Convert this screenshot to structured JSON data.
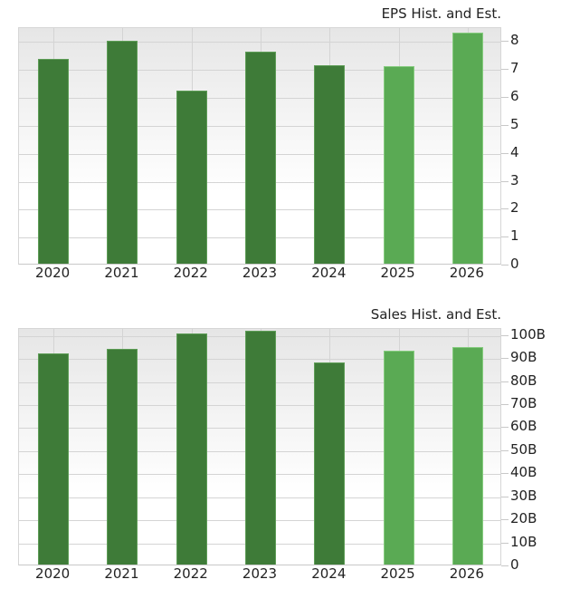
{
  "chart_data": [
    {
      "type": "bar",
      "title": "EPS Hist. and Est.",
      "categories": [
        "2020",
        "2021",
        "2022",
        "2023",
        "2024",
        "2025",
        "2026"
      ],
      "values": [
        7.34,
        7.99,
        6.2,
        7.6,
        7.1,
        7.08,
        8.28
      ],
      "series_kind": [
        "historical",
        "historical",
        "historical",
        "historical",
        "historical",
        "estimate",
        "estimate"
      ],
      "xlabel": "",
      "ylabel": "",
      "ylim": [
        0,
        8.5
      ],
      "yticks": [
        "0",
        "1",
        "2",
        "3",
        "4",
        "5",
        "6",
        "7",
        "8"
      ],
      "ytick_values": [
        0,
        1,
        2,
        3,
        4,
        5,
        6,
        7,
        8
      ],
      "grid": true,
      "yaxis_position": "right",
      "colors": {
        "historical": "#3e7b38",
        "estimate": "#5aaa54"
      }
    },
    {
      "type": "bar",
      "title": "Sales Hist. and Est.",
      "categories": [
        "2020",
        "2021",
        "2022",
        "2023",
        "2024",
        "2025",
        "2026"
      ],
      "values": [
        91.7,
        93.7,
        100.4,
        101.6,
        87.8,
        92.9,
        94.5
      ],
      "units": "B",
      "series_kind": [
        "historical",
        "historical",
        "historical",
        "historical",
        "historical",
        "estimate",
        "estimate"
      ],
      "xlabel": "",
      "ylabel": "",
      "ylim": [
        0,
        103
      ],
      "yticks": [
        "0",
        "10B",
        "20B",
        "30B",
        "40B",
        "50B",
        "60B",
        "70B",
        "80B",
        "90B",
        "100B"
      ],
      "ytick_values": [
        0,
        10,
        20,
        30,
        40,
        50,
        60,
        70,
        80,
        90,
        100
      ],
      "grid": true,
      "yaxis_position": "right",
      "colors": {
        "historical": "#3e7b38",
        "estimate": "#5aaa54"
      }
    }
  ]
}
